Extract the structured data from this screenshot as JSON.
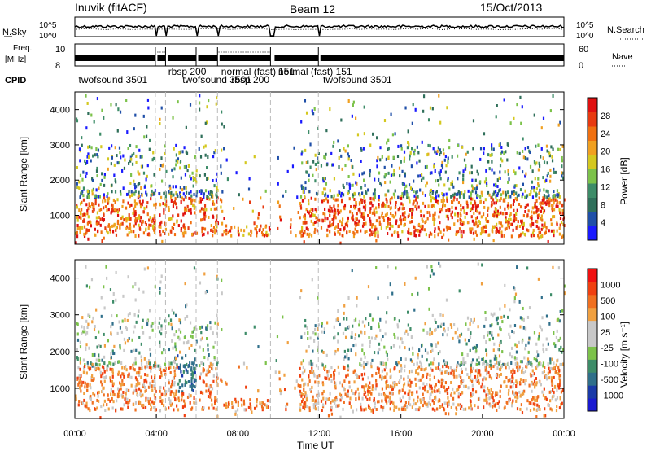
{
  "header": {
    "station": "Inuvik (fitACF)",
    "beam": "Beam 12",
    "date": "15/Oct/2013"
  },
  "side_labels": {
    "nsky": "N.Sky",
    "freq": "Freq.",
    "freq_unit": "[MHz]",
    "cpid": "CPID",
    "nsearch": "N.Search",
    "nave": "Nave"
  },
  "ticks": {
    "nsky_top": "10^5",
    "nsky_bottom": "10^0",
    "freq_top": "10",
    "freq_bottom": "8",
    "nsearch_top": "10^5",
    "nsearch_bottom": "10^0",
    "nave_top": "60",
    "nave_bottom": "0"
  },
  "cpid_labels": [
    {
      "text": "twofsound 3501",
      "t": 0.1
    },
    {
      "text": "rbsp 200",
      "t": 4.5
    },
    {
      "text": "twofsound 3501",
      "t": 5.2
    },
    {
      "text": "normal (fast)",
      "t": 7.1
    },
    {
      "text": "rbsp 200",
      "t": 7.6
    },
    {
      "text": "normal (fast) 151",
      "t": 9.9
    },
    {
      "text": "151",
      "t": 9.9
    },
    {
      "text": "twofsound 3501",
      "t": 12.1
    }
  ],
  "colors": {
    "power_scale": [
      "#1a1aff",
      "#1f4fa8",
      "#2f6f5a",
      "#3d8c68",
      "#7cc24a",
      "#d4c81f",
      "#f0a020",
      "#f07010",
      "#e83a10",
      "#e01010"
    ],
    "velocity_scale": [
      "#f01010",
      "#f04010",
      "#f07020",
      "#f0a040",
      "#c8c8c8",
      "#c8c8c8",
      "#7cc24a",
      "#3d8c68",
      "#2f6f8a",
      "#1a3aa8",
      "#1a1ad0"
    ]
  },
  "chart_data": [
    {
      "type": "line",
      "title": "N.Sky / N.Search",
      "xlabel": "",
      "ylabel": "",
      "x_range": [
        0,
        24
      ],
      "y_scale": "log",
      "ylim_label": [
        "10^0",
        "10^5"
      ]
    },
    {
      "type": "line",
      "title": "Freq. / Nave",
      "ylabel": "Freq. [MHz]",
      "ylim": [
        8,
        10
      ],
      "y2label": "Nave",
      "y2lim": [
        0,
        60
      ]
    },
    {
      "type": "heatmap",
      "title": "",
      "xlabel": "",
      "ylabel": "Slant Range [km]",
      "x_range": [
        0,
        24
      ],
      "ylim": [
        180,
        4500
      ],
      "yticks": [
        1000,
        2000,
        3000,
        4000
      ],
      "colorbar_label": "Power [dB]",
      "colorbar_ticks": [
        "4",
        "8",
        "12",
        "16",
        "20",
        "24",
        "28"
      ]
    },
    {
      "type": "heatmap",
      "title": "",
      "xlabel": "Time UT",
      "ylabel": "Slant Range [km]",
      "x_range": [
        0,
        24
      ],
      "ylim": [
        180,
        4500
      ],
      "yticks": [
        1000,
        2000,
        3000,
        4000
      ],
      "xticks": [
        "00:00",
        "04:00",
        "08:00",
        "12:00",
        "16:00",
        "20:00",
        "00:00"
      ],
      "colorbar_label": "Velocity [m s⁻¹]",
      "colorbar_ticks": [
        "1000",
        "500",
        "100",
        "25",
        "-25",
        "-100",
        "-500",
        "-1000"
      ]
    }
  ]
}
